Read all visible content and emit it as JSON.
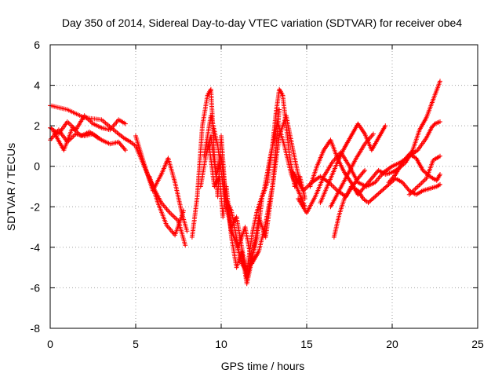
{
  "chart_data": {
    "type": "scatter",
    "title": "Day 350 of 2014, Sidereal Day-to-day VTEC variation (SDTVAR) for receiver obe4",
    "xlabel": "GPS time / hours",
    "ylabel": "SDTVAR / TECUs",
    "xlim": [
      0,
      25
    ],
    "ylim": [
      -8,
      6
    ],
    "xticks": [
      0,
      5,
      10,
      15,
      20,
      25
    ],
    "yticks": [
      -8,
      -6,
      -4,
      -2,
      0,
      2,
      4,
      6
    ],
    "grid": true,
    "marker": "+",
    "color": "#ff0000",
    "series": [
      {
        "name": "s1",
        "x": [
          0.0,
          1.0,
          2.0,
          3.0,
          4.0,
          4.3,
          4.7,
          5.0,
          5.5,
          6.0,
          6.5,
          7.0,
          7.5,
          7.9
        ],
        "y": [
          3.0,
          2.8,
          2.4,
          2.3,
          1.6,
          1.4,
          1.2,
          1.0,
          0.0,
          -1.0,
          -1.8,
          -2.3,
          -2.7,
          -3.9
        ]
      },
      {
        "name": "s2",
        "x": [
          0.0,
          0.5,
          1.0,
          1.5,
          2.0,
          2.5,
          3.0,
          3.5,
          4.0,
          4.4
        ],
        "y": [
          1.9,
          1.6,
          2.2,
          1.8,
          2.5,
          2.1,
          1.9,
          1.8,
          2.3,
          2.1
        ]
      },
      {
        "name": "s3",
        "x": [
          0.0,
          0.5,
          1.0,
          1.5,
          2.0,
          2.5,
          3.0,
          3.5,
          4.0,
          4.4
        ],
        "y": [
          1.3,
          1.8,
          1.2,
          1.6,
          1.5,
          1.6,
          1.3,
          1.1,
          1.2,
          0.8
        ]
      },
      {
        "name": "s4",
        "x": [
          0.2,
          0.8,
          1.3,
          1.8,
          2.3,
          2.8
        ],
        "y": [
          1.7,
          0.8,
          1.9,
          1.5,
          1.7,
          1.4
        ]
      },
      {
        "name": "s5",
        "x": [
          5.0,
          5.5,
          6.0,
          6.5,
          6.9,
          7.3,
          7.7,
          8.0
        ],
        "y": [
          1.5,
          0.1,
          -1.2,
          -0.4,
          0.4,
          -0.8,
          -2.3,
          -3.2
        ]
      },
      {
        "name": "s6",
        "x": [
          5.8,
          6.3,
          6.8,
          7.3,
          7.8
        ],
        "y": [
          -0.5,
          -1.8,
          -2.9,
          -3.4,
          -2.2
        ]
      },
      {
        "name": "s7",
        "x": [
          8.3,
          8.6,
          8.9,
          9.2,
          9.4,
          9.6,
          9.8,
          10.0,
          10.3,
          10.6,
          10.9,
          11.2,
          11.5,
          11.8,
          12.1,
          12.4,
          12.7,
          13.0,
          13.2,
          13.4,
          13.6,
          13.8,
          14.0,
          14.3,
          14.6,
          14.9
        ],
        "y": [
          -3.5,
          -1.5,
          2.0,
          3.5,
          3.8,
          0.5,
          -1.5,
          1.5,
          -2.0,
          -3.0,
          -2.5,
          -4.0,
          -5.5,
          -4.5,
          -3.5,
          -1.5,
          -0.8,
          1.0,
          2.6,
          3.8,
          3.5,
          2.0,
          0.5,
          -1.0,
          -0.5,
          -1.6
        ]
      },
      {
        "name": "s8",
        "x": [
          8.8,
          9.1,
          9.4,
          9.7,
          10.0,
          10.3,
          10.6,
          10.9,
          11.2,
          11.5,
          11.8,
          12.1,
          12.5,
          12.9,
          13.3,
          13.7,
          14.1,
          14.5,
          14.9
        ],
        "y": [
          -1.0,
          0.5,
          1.5,
          -0.5,
          0.5,
          -1.8,
          -3.2,
          -3.8,
          -4.8,
          -5.2,
          -3.4,
          -2.2,
          -1.2,
          0.6,
          2.2,
          1.0,
          -0.4,
          -1.2,
          -2.0
        ]
      },
      {
        "name": "s9",
        "x": [
          9.3,
          9.6,
          9.9,
          10.1,
          10.3,
          10.6,
          10.9,
          11.2,
          11.5,
          11.8,
          12.2,
          12.6,
          13.0,
          13.4,
          13.8,
          14.2,
          14.6
        ],
        "y": [
          1.0,
          -1.0,
          -0.5,
          -2.5,
          -1.0,
          -3.5,
          -5.0,
          -4.2,
          -5.8,
          -4.6,
          -2.5,
          -3.5,
          -1.0,
          1.5,
          2.5,
          0.8,
          -0.8
        ]
      },
      {
        "name": "s10",
        "x": [
          9.0,
          9.4,
          9.8,
          10.2,
          10.6,
          11.0,
          11.4,
          11.8,
          12.2,
          12.6,
          13.0,
          13.4
        ],
        "y": [
          0.5,
          2.5,
          1.0,
          -1.5,
          -2.2,
          -4.0,
          -3.0,
          -4.8,
          -4.2,
          -2.8,
          -1.0,
          2.8
        ]
      },
      {
        "name": "s11",
        "x": [
          14.2,
          14.8,
          15.3,
          15.8,
          16.3,
          16.8,
          17.3,
          17.6,
          18.0,
          18.3,
          18.6,
          19.0,
          19.4,
          19.8,
          20.2,
          20.6,
          21.0,
          21.4,
          21.8,
          22.2,
          22.6,
          22.8
        ],
        "y": [
          -0.3,
          -1.2,
          -0.8,
          -0.5,
          -0.8,
          -1.2,
          -1.5,
          -1.0,
          -1.2,
          -1.6,
          -1.8,
          -1.5,
          -1.2,
          -0.9,
          -0.6,
          -0.8,
          -1.2,
          -1.4,
          -1.2,
          -1.1,
          -1.0,
          -0.9
        ]
      },
      {
        "name": "s12",
        "x": [
          14.5,
          15.0,
          15.5,
          16.0,
          16.5,
          17.0,
          17.5,
          18.0,
          18.5,
          19.0,
          19.5,
          20.0,
          20.5,
          21.0,
          21.5,
          22.0,
          22.3,
          22.5,
          22.8
        ],
        "y": [
          -1.6,
          -2.3,
          -1.5,
          -0.5,
          0.2,
          0.7,
          0.0,
          -0.8,
          -1.0,
          -0.8,
          -0.3,
          0.0,
          0.2,
          0.5,
          0.8,
          1.4,
          1.9,
          2.1,
          2.2
        ]
      },
      {
        "name": "s13",
        "x": [
          15.2,
          15.6,
          16.0,
          16.4,
          16.8,
          17.2,
          17.6,
          18.0,
          18.4,
          18.8,
          19.2,
          19.6,
          20.0,
          20.4,
          20.8,
          21.2,
          21.6,
          22.0,
          22.4,
          22.8
        ],
        "y": [
          -1.0,
          0.0,
          0.8,
          1.3,
          0.4,
          -0.3,
          -0.8,
          -1.4,
          -1.0,
          -0.6,
          -0.2,
          -0.4,
          -0.3,
          -0.1,
          0.2,
          0.8,
          1.8,
          2.4,
          3.3,
          4.2
        ]
      },
      {
        "name": "s14",
        "x": [
          15.8,
          16.3,
          16.8,
          17.2,
          17.6,
          18.0,
          18.4,
          18.8,
          19.2,
          19.6
        ],
        "y": [
          -1.8,
          -0.8,
          0.2,
          0.9,
          1.5,
          2.1,
          1.6,
          0.8,
          1.4,
          2.0
        ]
      },
      {
        "name": "s15",
        "x": [
          16.4,
          16.9,
          17.4,
          17.9,
          18.4,
          18.9
        ],
        "y": [
          -2.0,
          -1.2,
          -0.4,
          0.4,
          1.1,
          1.6
        ]
      },
      {
        "name": "s16",
        "x": [
          16.6,
          16.9,
          17.2,
          17.6,
          18.0,
          18.4
        ],
        "y": [
          -3.5,
          -2.4,
          -1.6,
          -1.1,
          -0.6,
          -0.2
        ]
      },
      {
        "name": "s17",
        "x": [
          19.8,
          20.2,
          20.6,
          21.0,
          21.4,
          21.8,
          22.2,
          22.6,
          22.8
        ],
        "y": [
          -0.8,
          -0.4,
          0.2,
          0.6,
          0.4,
          -0.2,
          -0.5,
          -0.7,
          -0.4
        ]
      },
      {
        "name": "s18",
        "x": [
          21.0,
          21.5,
          22.0,
          22.4,
          22.8
        ],
        "y": [
          -1.4,
          -1.0,
          -0.6,
          0.3,
          0.5
        ]
      }
    ]
  }
}
